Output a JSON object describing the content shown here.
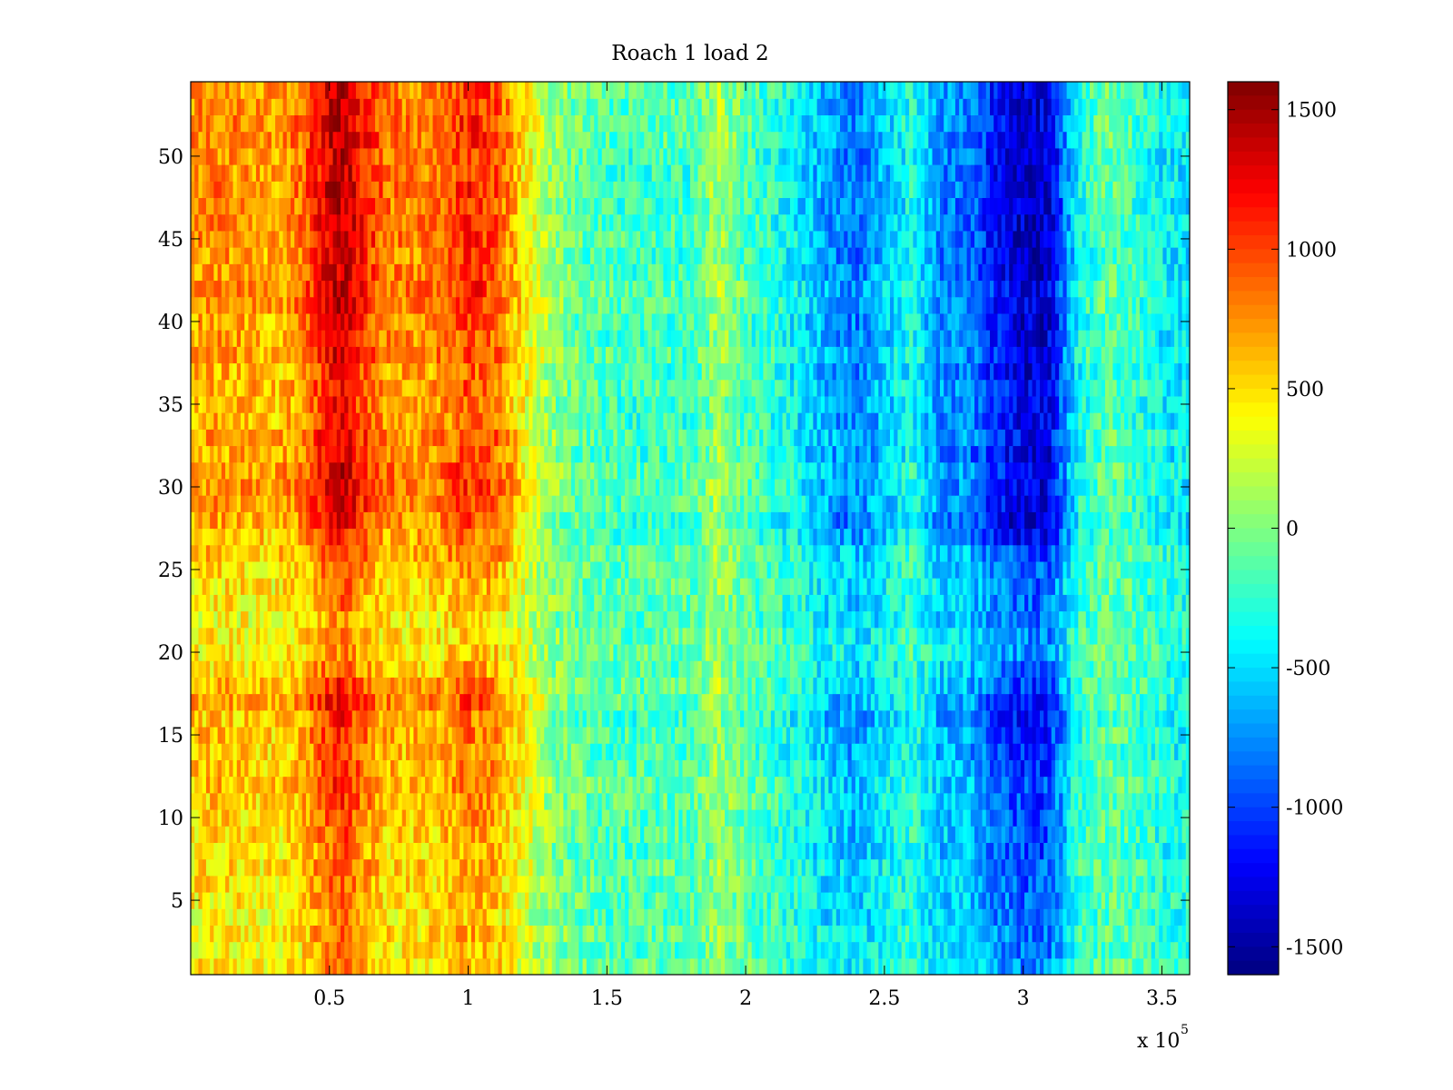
{
  "chart_data": {
    "type": "heatmap",
    "title": "Roach 1 load 2",
    "xlabel": "",
    "ylabel": "",
    "x_range": [
      0,
      360000
    ],
    "y_range": [
      0.5,
      54.5
    ],
    "rows": 54,
    "x_multiplier_label": "x 10",
    "x_multiplier_exponent": "5",
    "x_ticks": [
      {
        "value": 0.5,
        "label": "0.5"
      },
      {
        "value": 1,
        "label": "1"
      },
      {
        "value": 1.5,
        "label": "1.5"
      },
      {
        "value": 2,
        "label": "2"
      },
      {
        "value": 2.5,
        "label": "2.5"
      },
      {
        "value": 3,
        "label": "3"
      },
      {
        "value": 3.5,
        "label": "3.5"
      }
    ],
    "y_ticks": [
      {
        "value": 5,
        "label": "5"
      },
      {
        "value": 10,
        "label": "10"
      },
      {
        "value": 15,
        "label": "15"
      },
      {
        "value": 20,
        "label": "20"
      },
      {
        "value": 25,
        "label": "25"
      },
      {
        "value": 30,
        "label": "30"
      },
      {
        "value": 35,
        "label": "35"
      },
      {
        "value": 40,
        "label": "40"
      },
      {
        "value": 45,
        "label": "45"
      },
      {
        "value": 50,
        "label": "50"
      }
    ],
    "colorbar": {
      "colormap": "jet",
      "range": [
        -1600,
        1600
      ],
      "ticks": [
        {
          "value": 1500,
          "label": "1500"
        },
        {
          "value": 1000,
          "label": "1000"
        },
        {
          "value": 500,
          "label": "500"
        },
        {
          "value": 0,
          "label": "0"
        },
        {
          "value": -500,
          "label": "-500"
        },
        {
          "value": -1000,
          "label": "-1000"
        },
        {
          "value": -1500,
          "label": "-1500"
        }
      ]
    },
    "column_profile": {
      "x": [
        0,
        10000,
        20000,
        30000,
        40000,
        50000,
        55000,
        60000,
        70000,
        80000,
        90000,
        100000,
        110000,
        120000,
        130000,
        140000,
        150000,
        160000,
        170000,
        180000,
        190000,
        200000,
        210000,
        220000,
        230000,
        240000,
        250000,
        260000,
        270000,
        280000,
        290000,
        300000,
        305000,
        310000,
        320000,
        330000,
        340000,
        350000,
        360000
      ],
      "mean_value": [
        600,
        650,
        600,
        550,
        700,
        1100,
        1200,
        1000,
        700,
        650,
        700,
        900,
        800,
        400,
        50,
        -100,
        -150,
        -200,
        -150,
        -200,
        100,
        -150,
        -250,
        -400,
        -600,
        -700,
        -500,
        -300,
        -650,
        -700,
        -1000,
        -1150,
        -1200,
        -1100,
        -300,
        -100,
        -200,
        -350,
        -400
      ]
    },
    "row_profile": {
      "rows": [
        1,
        5,
        10,
        15,
        17,
        20,
        25,
        28,
        30,
        35,
        40,
        45,
        50,
        54
      ],
      "scale": [
        0.7,
        0.75,
        0.85,
        0.95,
        1.05,
        0.65,
        0.8,
        1.15,
        1.15,
        1.05,
        1.15,
        1.2,
        1.2,
        1.15
      ]
    }
  }
}
